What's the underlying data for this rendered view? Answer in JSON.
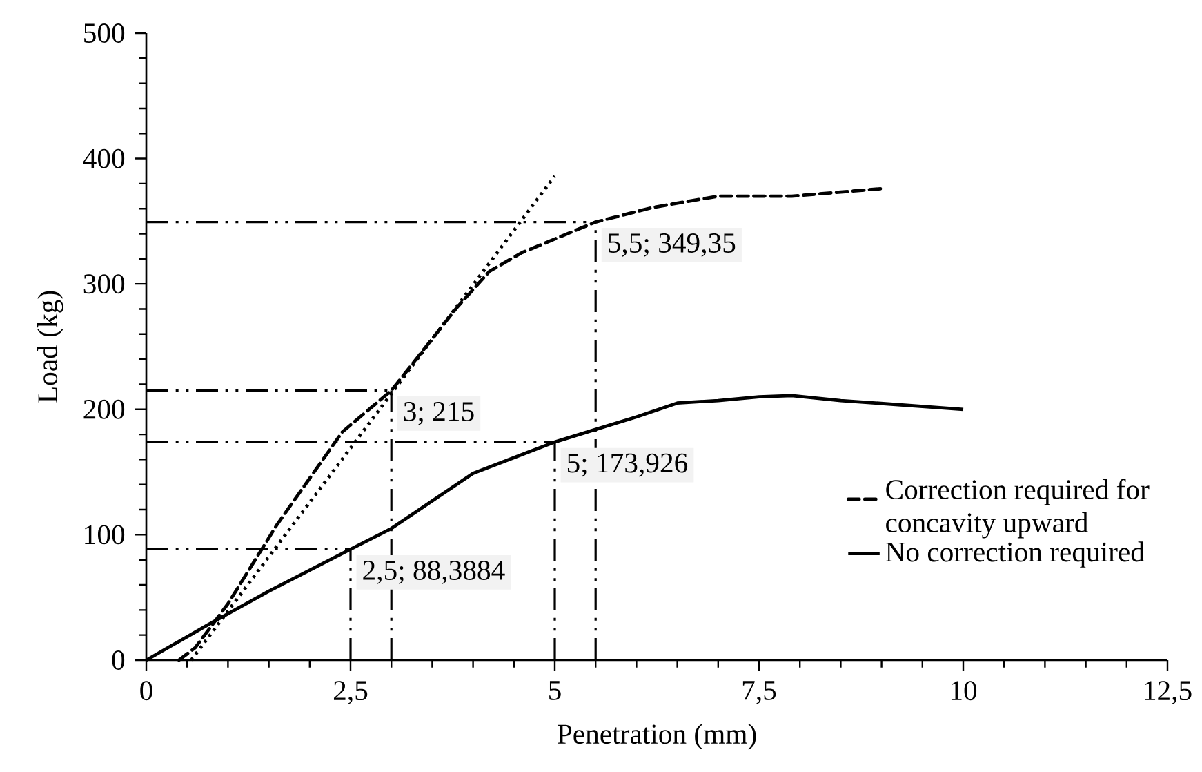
{
  "chart_data": {
    "type": "line",
    "xlabel": "Penetration (mm)",
    "ylabel": "Load (kg)",
    "xlim": [
      0,
      12.5
    ],
    "ylim": [
      0,
      500
    ],
    "xticks": [
      0,
      {
        "value": 2.5,
        "label": "2,5"
      },
      5,
      {
        "value": 7.5,
        "label": "7,5"
      },
      10,
      {
        "value": 12.5,
        "label": "12,5"
      }
    ],
    "yticks": [
      0,
      100,
      200,
      300,
      400,
      500
    ],
    "marker": "none",
    "legend": "right",
    "series": [
      {
        "name": "Correction required for concavity upward",
        "color": "#000000",
        "line_style": "dashed",
        "x": [
          0.4,
          0.6,
          1,
          1.6,
          2.4,
          3,
          3.8,
          4.2,
          4.6,
          5.5,
          6.2,
          7,
          7.9,
          9
        ],
        "values": [
          0,
          10,
          45,
          108,
          182,
          215,
          281,
          310,
          325,
          349.35,
          361,
          370,
          370,
          376
        ]
      },
      {
        "name": "No correction required",
        "color": "#000000",
        "line_style": "solid",
        "x": [
          0,
          0.75,
          1.5,
          2.5,
          3,
          4,
          5,
          5.5,
          6,
          6.5,
          7,
          7.5,
          7.9,
          8.5,
          10
        ],
        "values": [
          0,
          28,
          55,
          88.3884,
          105,
          149,
          173.926,
          184,
          194,
          205,
          207,
          210,
          211,
          207,
          200
        ]
      },
      {
        "color": "#000000",
        "line_style": "dotted",
        "x": [
          0.55,
          5
        ],
        "values": [
          0,
          386
        ]
      }
    ],
    "ref_lines": [
      {
        "axis": "y",
        "value": 349.35,
        "line_style": "dashdotdotted",
        "color": "#000000"
      },
      {
        "axis": "x",
        "value": 5.5,
        "line_style": "dashdotdotted",
        "color": "#000000"
      },
      {
        "axis": "y",
        "value": 215,
        "line_style": "dashdotdotted",
        "color": "#000000"
      },
      {
        "axis": "x",
        "value": 3,
        "line_style": "dashdotdotted",
        "color": "#000000"
      },
      {
        "axis": "y",
        "value": 173.926,
        "line_style": "dashdotdotted",
        "color": "#000000"
      },
      {
        "axis": "x",
        "value": 5,
        "line_style": "dashdotdotted",
        "color": "#000000"
      },
      {
        "axis": "y",
        "value": 88.3884,
        "line_style": "dashdotdotted",
        "color": "#000000"
      },
      {
        "axis": "x",
        "value": 2.5,
        "line_style": "dashdotdotted",
        "color": "#000000"
      }
    ],
    "annotations": [
      {
        "text": "5,5; 349,35",
        "x": 5.5,
        "y": 349.35
      },
      {
        "text": "3; 215",
        "x": 3,
        "y": 215
      },
      {
        "text": "5; 173,926",
        "x": 5,
        "y": 173.926
      },
      {
        "text": "2,5; 88,3884",
        "x": 2.5,
        "y": 88.3884
      }
    ]
  }
}
